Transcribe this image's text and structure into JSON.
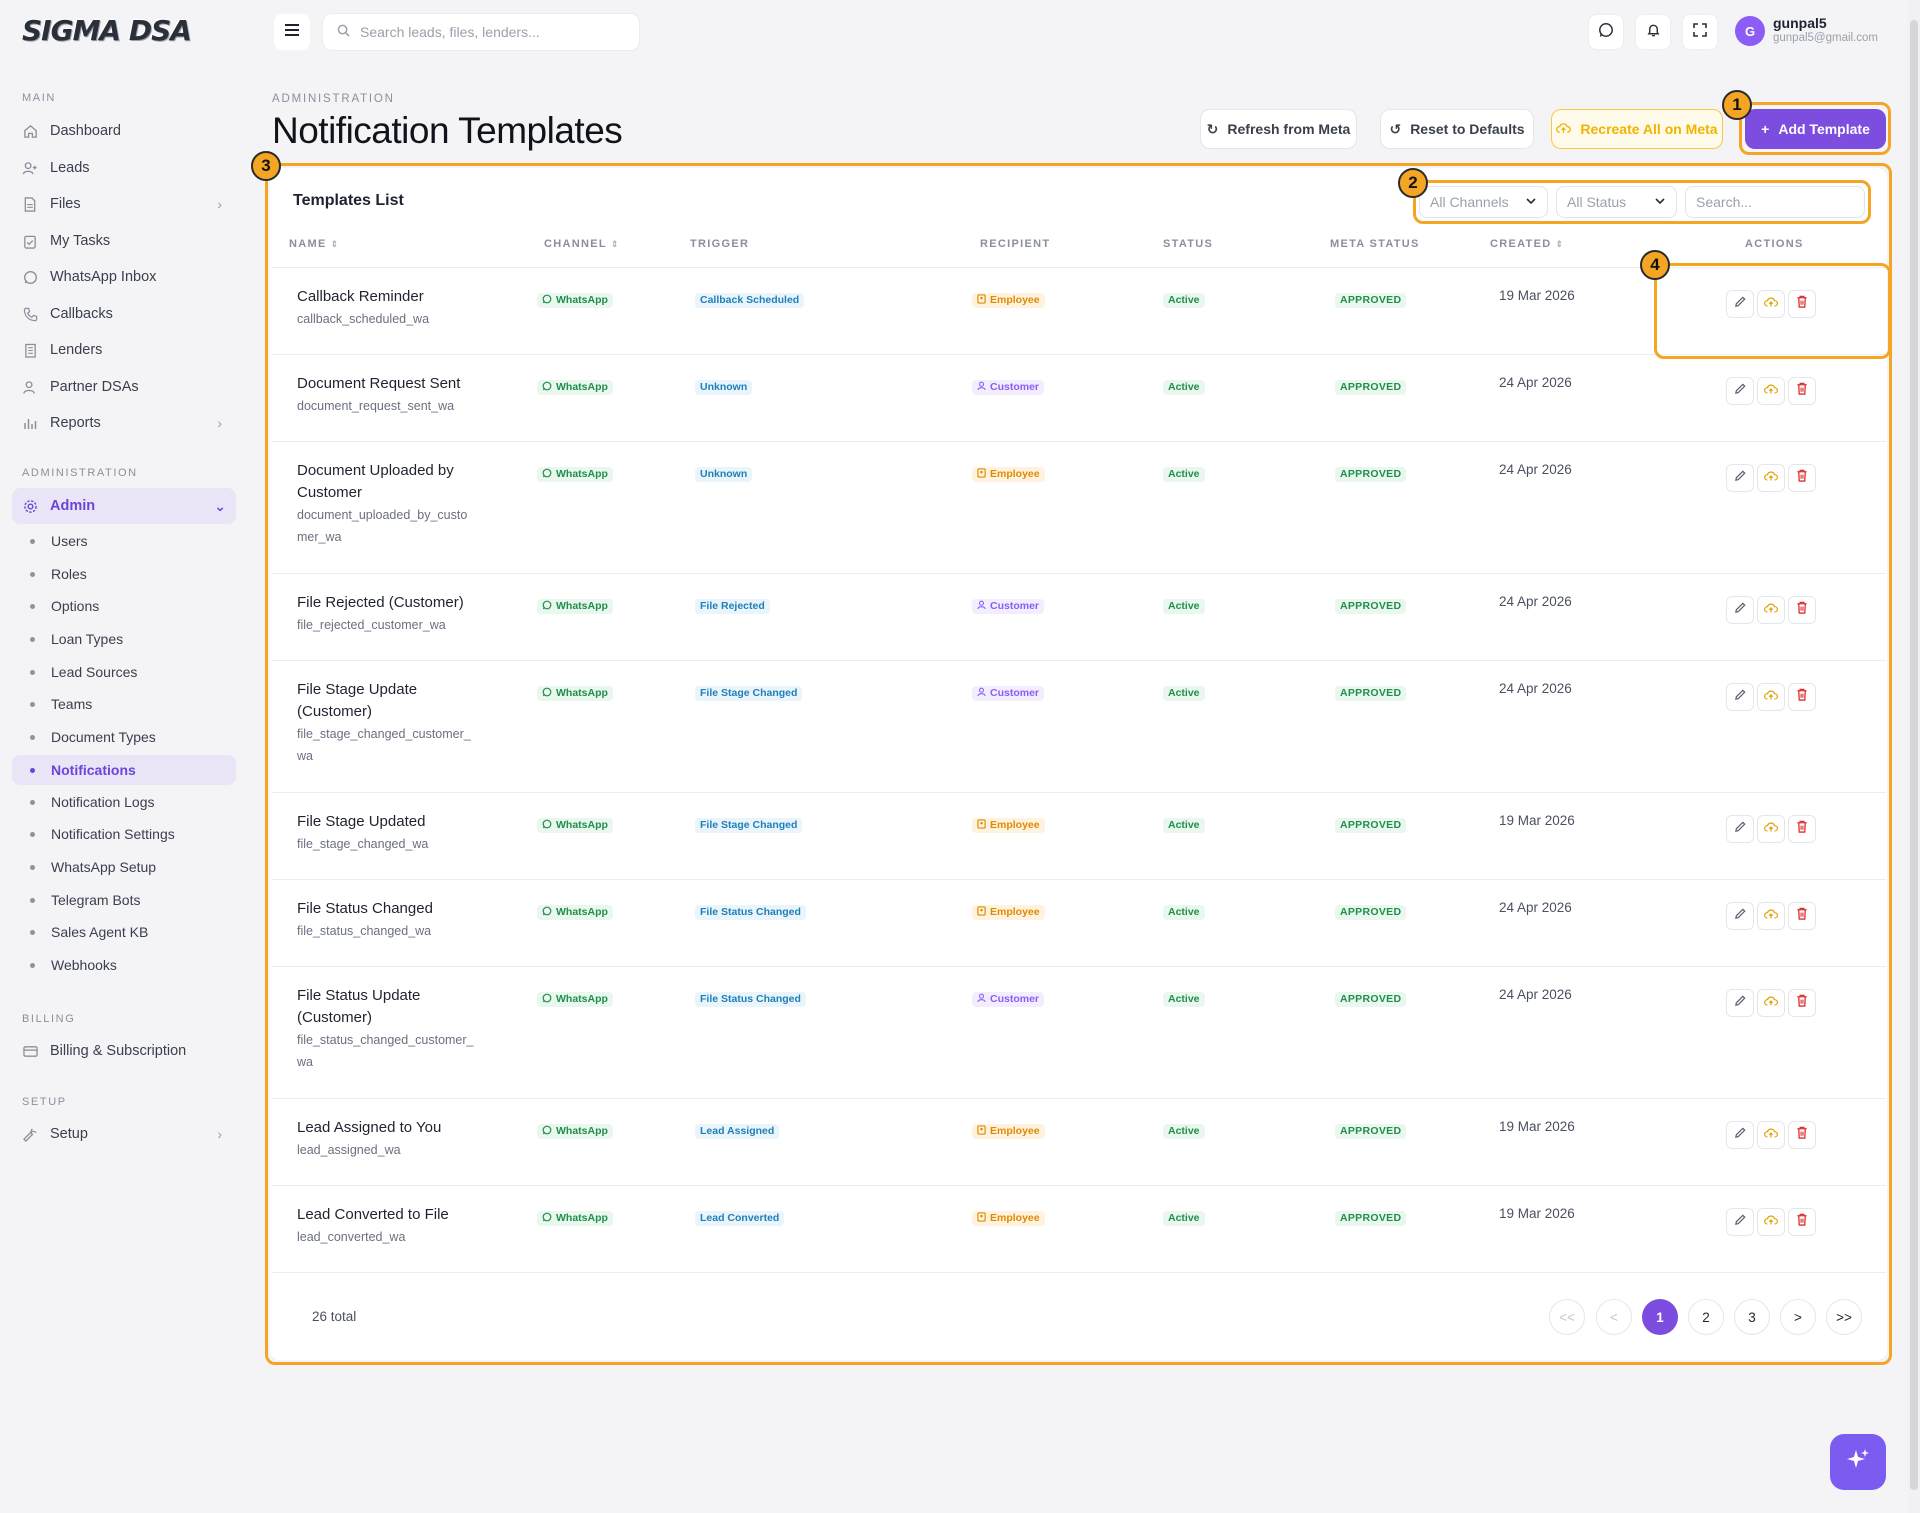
{
  "app": {
    "logo_text": "SIGMA DSA"
  },
  "topbar": {
    "search_placeholder": "Search leads, files, lenders...",
    "user": {
      "initial": "G",
      "name": "gunpal5",
      "email": "gunpal5@gmail.com"
    }
  },
  "sidebar": {
    "sections": {
      "main": "MAIN",
      "administration": "ADMINISTRATION",
      "billing": "BILLING",
      "setup": "SETUP"
    },
    "main_items": [
      {
        "label": "Dashboard",
        "icon": "home-icon"
      },
      {
        "label": "Leads",
        "icon": "user-plus-icon"
      },
      {
        "label": "Files",
        "icon": "file-icon"
      },
      {
        "label": "My Tasks",
        "icon": "clipboard-icon"
      },
      {
        "label": "WhatsApp Inbox",
        "icon": "whatsapp-icon"
      },
      {
        "label": "Callbacks",
        "icon": "phone-icon"
      },
      {
        "label": "Lenders",
        "icon": "building-icon"
      },
      {
        "label": "Partner DSAs",
        "icon": "users-icon"
      },
      {
        "label": "Reports",
        "icon": "bar-chart-icon"
      }
    ],
    "admin_label": "Admin",
    "admin_items": [
      "Users",
      "Roles",
      "Options",
      "Loan Types",
      "Lead Sources",
      "Teams",
      "Document Types",
      "Notifications",
      "Notification Logs",
      "Notification Settings",
      "WhatsApp Setup",
      "Telegram Bots",
      "Sales Agent KB",
      "Webhooks"
    ],
    "billing_item": "Billing & Subscription",
    "setup_item": "Setup"
  },
  "page": {
    "breadcrumb": "ADMINISTRATION",
    "title": "Notification Templates",
    "buttons": {
      "refresh": "Refresh from Meta",
      "reset": "Reset to Defaults",
      "recreate": "Recreate All on Meta",
      "add": "Add Template"
    }
  },
  "annotations": [
    "1",
    "2",
    "3",
    "4"
  ],
  "table": {
    "title": "Templates List",
    "filters": {
      "channel": "All Channels",
      "status": "All Status",
      "search_placeholder": "Search..."
    },
    "headers": {
      "name": "NAME",
      "channel": "CHANNEL",
      "trigger": "TRIGGER",
      "recipient": "RECIPIENT",
      "status": "STATUS",
      "meta_status": "META STATUS",
      "created": "CREATED",
      "actions": "ACTIONS"
    },
    "rows": [
      {
        "name": "Callback Reminder",
        "code": "callback_scheduled_wa",
        "channel": "WhatsApp",
        "trigger": "Callback Scheduled",
        "recipient": "Employee",
        "status": "Active",
        "meta_status": "APPROVED",
        "created": "19 Mar 2026"
      },
      {
        "name": "Document Request Sent",
        "code": "document_request_sent_wa",
        "channel": "WhatsApp",
        "trigger": "Unknown",
        "recipient": "Customer",
        "status": "Active",
        "meta_status": "APPROVED",
        "created": "24 Apr 2026"
      },
      {
        "name": "Document Uploaded by Customer",
        "code": "document_uploaded_by_customer_wa",
        "channel": "WhatsApp",
        "trigger": "Unknown",
        "recipient": "Employee",
        "status": "Active",
        "meta_status": "APPROVED",
        "created": "24 Apr 2026"
      },
      {
        "name": "File Rejected (Customer)",
        "code": "file_rejected_customer_wa",
        "channel": "WhatsApp",
        "trigger": "File Rejected",
        "recipient": "Customer",
        "status": "Active",
        "meta_status": "APPROVED",
        "created": "24 Apr 2026"
      },
      {
        "name": "File Stage Update (Customer)",
        "code": "file_stage_changed_customer_wa",
        "channel": "WhatsApp",
        "trigger": "File Stage Changed",
        "recipient": "Customer",
        "status": "Active",
        "meta_status": "APPROVED",
        "created": "24 Apr 2026"
      },
      {
        "name": "File Stage Updated",
        "code": "file_stage_changed_wa",
        "channel": "WhatsApp",
        "trigger": "File Stage Changed",
        "recipient": "Employee",
        "status": "Active",
        "meta_status": "APPROVED",
        "created": "19 Mar 2026"
      },
      {
        "name": "File Status Changed",
        "code": "file_status_changed_wa",
        "channel": "WhatsApp",
        "trigger": "File Status Changed",
        "recipient": "Employee",
        "status": "Active",
        "meta_status": "APPROVED",
        "created": "24 Apr 2026"
      },
      {
        "name": "File Status Update (Customer)",
        "code": "file_status_changed_customer_wa",
        "channel": "WhatsApp",
        "trigger": "File Status Changed",
        "recipient": "Customer",
        "status": "Active",
        "meta_status": "APPROVED",
        "created": "24 Apr 2026"
      },
      {
        "name": "Lead Assigned to You",
        "code": "lead_assigned_wa",
        "channel": "WhatsApp",
        "trigger": "Lead Assigned",
        "recipient": "Employee",
        "status": "Active",
        "meta_status": "APPROVED",
        "created": "19 Mar 2026"
      },
      {
        "name": "Lead Converted to File",
        "code": "lead_converted_wa",
        "channel": "WhatsApp",
        "trigger": "Lead Converted",
        "recipient": "Employee",
        "status": "Active",
        "meta_status": "APPROVED",
        "created": "19 Mar 2026"
      }
    ],
    "row_action_icons": [
      "pencil-icon",
      "cloud-upload-icon",
      "trash-icon"
    ]
  },
  "pagination": {
    "total": "26 total",
    "first": "<<",
    "prev": "<",
    "pages": [
      "1",
      "2",
      "3"
    ],
    "current": "1",
    "next": ">",
    "last": ">>"
  },
  "colors": {
    "accent": "#7c4ddf",
    "highlight": "#f5a524",
    "whatsapp": "#1f8f4a",
    "employee": "#e08a00",
    "customer": "#8b5cf6"
  }
}
